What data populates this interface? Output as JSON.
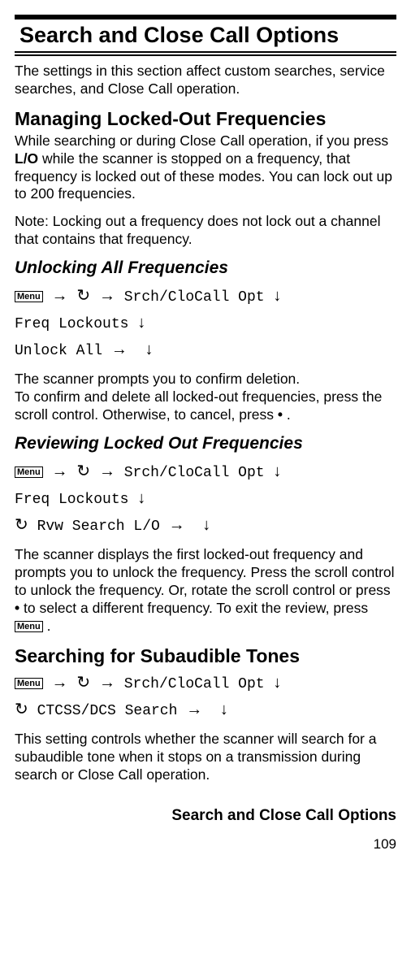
{
  "chapter_title": "Search and Close Call Options",
  "intro": "The settings in this section affect custom searches, service searches, and Close Call operation.",
  "managing_h": "Managing Locked-Out Frequencies",
  "managing_p": "While searching or during Close Call operation, if you press L/O while the scanner is stopped on a frequency, that frequency is locked out of these modes. You can lock out up to 200 frequencies.",
  "managing_note_label": "Note: ",
  "managing_note": "Locking out a frequency does not lock out a channel that contains that frequency.",
  "unlock_h": "Unlocking All Frequencies",
  "menu_label": "Menu",
  "nav_srch": "Srch/CloCall Opt",
  "nav_freq": "Freq Lockouts",
  "nav_unlock": "Unlock All",
  "unlock_p1": "The scanner prompts you to confirm deletion.",
  "unlock_p2": "To confirm and delete all locked-out frequencies, press the scroll control. Otherwise, to cancel, press ",
  "dot": " • ",
  "period": ".",
  "review_h": "Reviewing Locked Out Frequencies",
  "nav_rvw": "Rvw Search L/O",
  "review_p_a": "The scanner displays the first locked-out frequency and prompts you to unlock the frequency. Press the scroll control to unlock the frequency. Or, rotate the scroll control or press ",
  "review_p_b": " to select a different frequency. To exit the review, press ",
  "sub_h": "Searching for Subaudible Tones",
  "nav_ctcss": "CTCSS/DCS Search",
  "sub_p": "This setting controls whether the scanner will search for a subaudible tone when it stops on a transmission during search or Close Call operation.",
  "footer_title": "Search and Close Call Options",
  "page_num": "109",
  "sym_arrow_r": "→",
  "sym_arrow_d": "↓",
  "sym_scroll": "↻"
}
